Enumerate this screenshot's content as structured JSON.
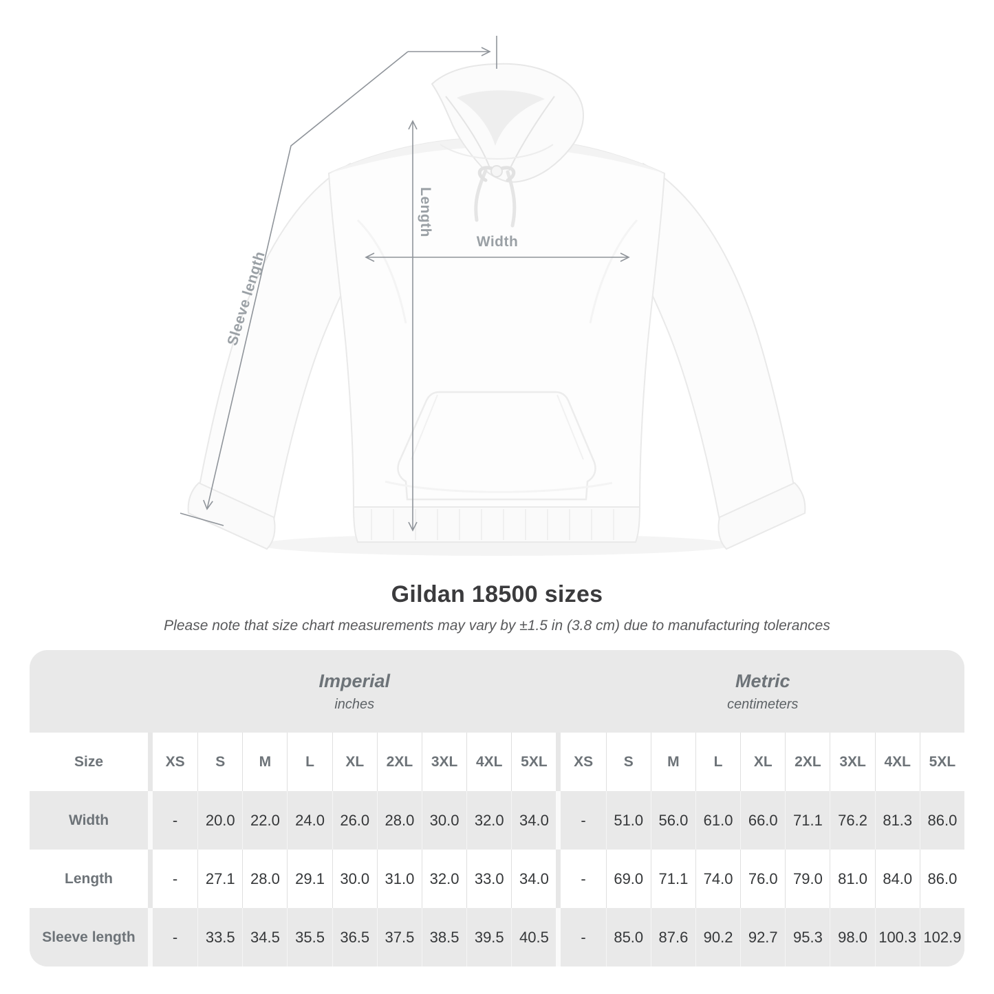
{
  "page": {
    "title": "Gildan 18500 sizes",
    "subtitle": "Please note that size chart measurements may vary by ±1.5 in (3.8 cm) due to manufacturing tolerances"
  },
  "diagram": {
    "length_label": "Length",
    "width_label": "Width",
    "sleeve_label": "Sleeve length"
  },
  "table": {
    "corner_label": "Size",
    "groups": [
      {
        "name": "Imperial",
        "unit": "inches"
      },
      {
        "name": "Metric",
        "unit": "centimeters"
      }
    ],
    "sizes": [
      "XS",
      "S",
      "M",
      "L",
      "XL",
      "2XL",
      "3XL",
      "4XL",
      "5XL"
    ],
    "rows": [
      {
        "label": "Width",
        "imperial": [
          "-",
          "20.0",
          "22.0",
          "24.0",
          "26.0",
          "28.0",
          "30.0",
          "32.0",
          "34.0"
        ],
        "metric": [
          "-",
          "51.0",
          "56.0",
          "61.0",
          "66.0",
          "71.1",
          "76.2",
          "81.3",
          "86.0"
        ]
      },
      {
        "label": "Length",
        "imperial": [
          "-",
          "27.1",
          "28.0",
          "29.1",
          "30.0",
          "31.0",
          "32.0",
          "33.0",
          "34.0"
        ],
        "metric": [
          "-",
          "69.0",
          "71.1",
          "74.0",
          "76.0",
          "79.0",
          "81.0",
          "84.0",
          "86.0"
        ]
      },
      {
        "label": "Sleeve length",
        "imperial": [
          "-",
          "33.5",
          "34.5",
          "35.5",
          "36.5",
          "37.5",
          "38.5",
          "39.5",
          "40.5"
        ],
        "metric": [
          "-",
          "85.0",
          "87.6",
          "90.2",
          "92.7",
          "95.3",
          "98.0",
          "100.3",
          "102.9"
        ]
      }
    ]
  },
  "colors": {
    "arrow_line": "#8f949a",
    "dimension_label": "#9aa0a5",
    "heading_text": "#6d7378",
    "value_text": "#353739",
    "table_background": "#e9e9e9",
    "title_text": "#3b3b3d",
    "note_text": "#58595b"
  }
}
